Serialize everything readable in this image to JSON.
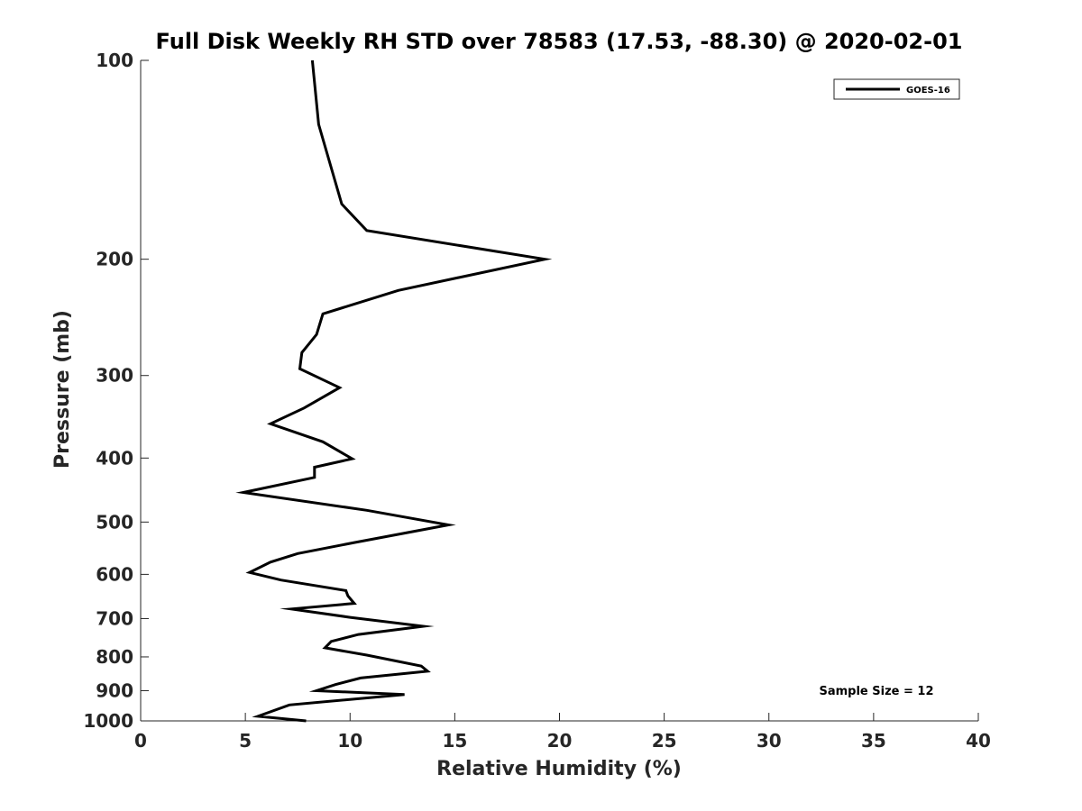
{
  "chart_data": {
    "type": "line",
    "title": "Full Disk Weekly RH STD over 78583 (17.53, -88.30) @ 2020-02-01",
    "xlabel": "Relative Humidity (%)",
    "ylabel": "Pressure (mb)",
    "xlim": [
      0,
      40
    ],
    "ylim": [
      100,
      1000
    ],
    "yscale": "log",
    "y_reversed": true,
    "xticks": [
      0,
      5,
      10,
      15,
      20,
      25,
      30,
      35,
      40
    ],
    "yticks": [
      100,
      200,
      300,
      400,
      500,
      600,
      700,
      800,
      900,
      1000
    ],
    "legend": {
      "entries": [
        "GOES-16"
      ],
      "placement": "top-right"
    },
    "annotation": "Sample Size = 12",
    "series": [
      {
        "name": "GOES-16",
        "color": "#000000",
        "x": [
          8.2,
          8.5,
          9.6,
          10.8,
          19.3,
          12.3,
          8.7,
          8.4,
          7.7,
          7.6,
          9.5,
          7.8,
          6.2,
          8.7,
          10.1,
          8.3,
          8.3,
          4.9,
          10.8,
          14.7,
          10.2,
          7.5,
          6.2,
          5.2,
          6.7,
          9.8,
          9.9,
          10.2,
          7.2,
          10.0,
          13.5,
          10.4,
          9.1,
          8.8,
          10.8,
          13.4,
          13.7,
          10.5,
          9.3,
          8.4,
          12.6,
          7.1,
          5.6,
          7.9
        ],
        "y": [
          100,
          125,
          165,
          181,
          200,
          223,
          242,
          260,
          277,
          293,
          313,
          336,
          355,
          378,
          401,
          413,
          428,
          451,
          480,
          505,
          537,
          558,
          575,
          596,
          612,
          635,
          647,
          664,
          677,
          697,
          719,
          740,
          758,
          775,
          795,
          826,
          841,
          861,
          881,
          900,
          912,
          946,
          984,
          1000
        ]
      }
    ]
  }
}
